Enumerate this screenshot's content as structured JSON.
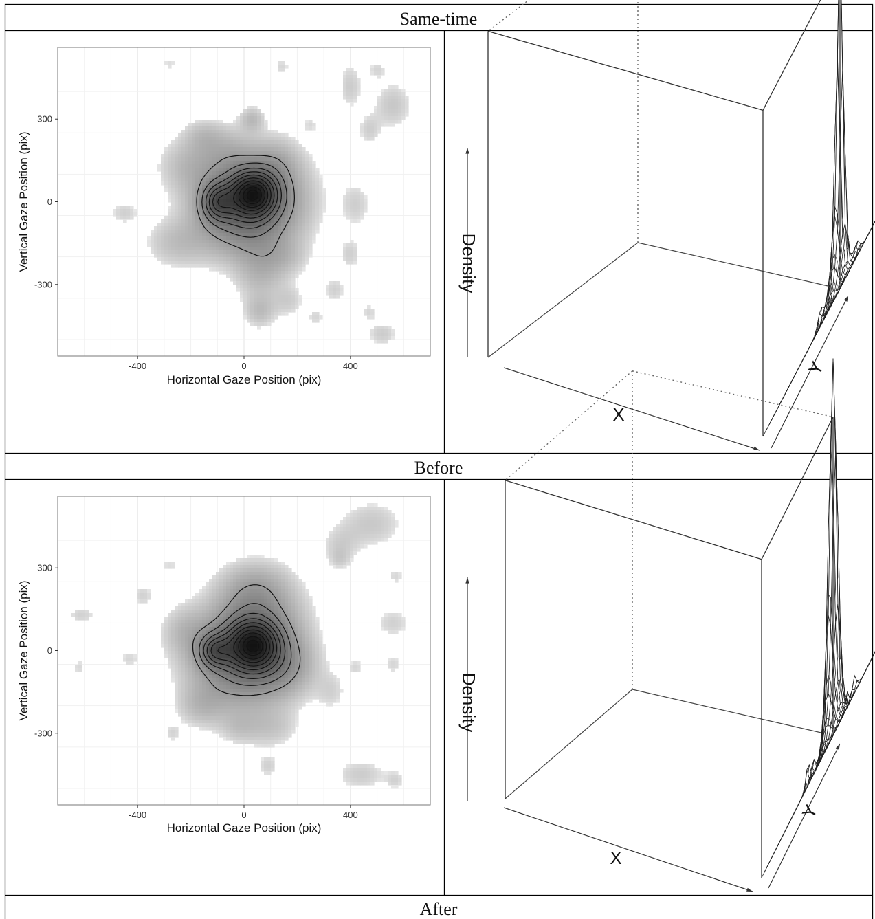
{
  "captions": [
    "Same-time",
    "Before",
    "After"
  ],
  "chart_data": [
    {
      "type": "heatmap",
      "subtype": "2d-density-contour",
      "panel": "Same-time",
      "xlabel": "Horizontal Gaze Position (pix)",
      "ylabel": "Vertical Gaze Position (pix)",
      "x_ticks": [
        -400,
        0,
        400
      ],
      "y_ticks": [
        300,
        0,
        -300
      ],
      "x_tick_labels": [
        "-400",
        "0",
        "400"
      ],
      "y_tick_labels": [
        "300",
        "0",
        "-300"
      ],
      "xlim": [
        -700,
        700
      ],
      "ylim": [
        -560,
        560
      ],
      "grid": true,
      "colors": {
        "fill_low": "#e8e8e8",
        "fill_high": "#111111",
        "contour": "#111111",
        "grid": "#e6e6e6"
      },
      "peaks": [
        {
          "x": 35,
          "y": 30,
          "weight": 1.0,
          "sx": 60,
          "sy": 55
        },
        {
          "x": -100,
          "y": 0,
          "weight": 0.55,
          "sx": 40,
          "sy": 45
        },
        {
          "x": -20,
          "y": -40,
          "weight": 0.4,
          "sx": 110,
          "sy": 100
        },
        {
          "x": 60,
          "y": 10,
          "weight": 0.35,
          "sx": 120,
          "sy": 110
        },
        {
          "x": -200,
          "y": 130,
          "weight": 0.14,
          "sx": 80,
          "sy": 70
        },
        {
          "x": 120,
          "y": 140,
          "weight": 0.12,
          "sx": 60,
          "sy": 60
        },
        {
          "x": -250,
          "y": -150,
          "weight": 0.12,
          "sx": 80,
          "sy": 60
        },
        {
          "x": -60,
          "y": 180,
          "weight": 0.12,
          "sx": 70,
          "sy": 60
        },
        {
          "x": 60,
          "y": -250,
          "weight": 0.14,
          "sx": 60,
          "sy": 80
        },
        {
          "x": 60,
          "y": -400,
          "weight": 0.12,
          "sx": 40,
          "sy": 40
        },
        {
          "x": 30,
          "y": 300,
          "weight": 0.14,
          "sx": 30,
          "sy": 30
        },
        {
          "x": 150,
          "y": -200,
          "weight": 0.1,
          "sx": 60,
          "sy": 50
        },
        {
          "x": -150,
          "y": 240,
          "weight": 0.1,
          "sx": 50,
          "sy": 40
        },
        {
          "x": -450,
          "y": -40,
          "weight": 0.08,
          "sx": 40,
          "sy": 30
        },
        {
          "x": 400,
          "y": 420,
          "weight": 0.09,
          "sx": 30,
          "sy": 60
        },
        {
          "x": 560,
          "y": 350,
          "weight": 0.1,
          "sx": 50,
          "sy": 60
        },
        {
          "x": 470,
          "y": 260,
          "weight": 0.08,
          "sx": 30,
          "sy": 40
        },
        {
          "x": 420,
          "y": -10,
          "weight": 0.08,
          "sx": 40,
          "sy": 60
        },
        {
          "x": 400,
          "y": -190,
          "weight": 0.08,
          "sx": 30,
          "sy": 40
        },
        {
          "x": 340,
          "y": -320,
          "weight": 0.08,
          "sx": 30,
          "sy": 35
        },
        {
          "x": 270,
          "y": -420,
          "weight": 0.07,
          "sx": 25,
          "sy": 25
        },
        {
          "x": 470,
          "y": -400,
          "weight": 0.07,
          "sx": 25,
          "sy": 25
        },
        {
          "x": 520,
          "y": -480,
          "weight": 0.09,
          "sx": 40,
          "sy": 30
        },
        {
          "x": 250,
          "y": 280,
          "weight": 0.06,
          "sx": 25,
          "sy": 25
        },
        {
          "x": 140,
          "y": 490,
          "weight": 0.07,
          "sx": 25,
          "sy": 25
        },
        {
          "x": -280,
          "y": 500,
          "weight": 0.06,
          "sx": 30,
          "sy": 20
        },
        {
          "x": 500,
          "y": 480,
          "weight": 0.07,
          "sx": 25,
          "sy": 25
        },
        {
          "x": 170,
          "y": -360,
          "weight": 0.08,
          "sx": 40,
          "sy": 40
        }
      ]
    },
    {
      "type": "surface",
      "subtype": "3d-perspective-wireframe",
      "panel": "Same-time",
      "axis_labels": {
        "x": "X",
        "y": "Y",
        "z": "Density"
      },
      "grid_size": 30,
      "peaks": [
        {
          "u": 0.5,
          "v": 0.5,
          "height": 1.0,
          "s": 0.03
        },
        {
          "u": 0.46,
          "v": 0.52,
          "height": 0.25,
          "s": 0.06
        },
        {
          "u": 0.52,
          "v": 0.45,
          "height": 0.15,
          "s": 0.05
        },
        {
          "u": 0.4,
          "v": 0.35,
          "height": 0.06,
          "s": 0.025
        },
        {
          "u": 0.6,
          "v": 0.62,
          "height": 0.05,
          "s": 0.025
        }
      ]
    },
    {
      "type": "heatmap",
      "subtype": "2d-density-contour",
      "panel": "Before",
      "xlabel": "Horizontal Gaze Position (pix)",
      "ylabel": "Vertical Gaze Position (pix)",
      "x_ticks": [
        -400,
        0,
        400
      ],
      "y_ticks": [
        300,
        0,
        -300
      ],
      "x_tick_labels": [
        "-400",
        "0",
        "400"
      ],
      "y_tick_labels": [
        "300",
        "0",
        "-300"
      ],
      "xlim": [
        -700,
        700
      ],
      "ylim": [
        -560,
        560
      ],
      "grid": true,
      "colors": {
        "fill_low": "#e8e8e8",
        "fill_high": "#111111",
        "contour": "#111111",
        "grid": "#e6e6e6"
      },
      "peaks": [
        {
          "x": 35,
          "y": 20,
          "weight": 1.0,
          "sx": 65,
          "sy": 60
        },
        {
          "x": -110,
          "y": 0,
          "weight": 0.55,
          "sx": 40,
          "sy": 40
        },
        {
          "x": -20,
          "y": -40,
          "weight": 0.45,
          "sx": 120,
          "sy": 110
        },
        {
          "x": 50,
          "y": 80,
          "weight": 0.35,
          "sx": 110,
          "sy": 120
        },
        {
          "x": 150,
          "y": -60,
          "weight": 0.2,
          "sx": 80,
          "sy": 70
        },
        {
          "x": 40,
          "y": 220,
          "weight": 0.15,
          "sx": 80,
          "sy": 60
        },
        {
          "x": -160,
          "y": -200,
          "weight": 0.12,
          "sx": 60,
          "sy": 50
        },
        {
          "x": -220,
          "y": 70,
          "weight": 0.12,
          "sx": 60,
          "sy": 60
        },
        {
          "x": 100,
          "y": -280,
          "weight": 0.1,
          "sx": 70,
          "sy": 50
        },
        {
          "x": -20,
          "y": -280,
          "weight": 0.08,
          "sx": 50,
          "sy": 40
        },
        {
          "x": -380,
          "y": 200,
          "weight": 0.08,
          "sx": 30,
          "sy": 30
        },
        {
          "x": -430,
          "y": -30,
          "weight": 0.07,
          "sx": 30,
          "sy": 25
        },
        {
          "x": -610,
          "y": 130,
          "weight": 0.08,
          "sx": 40,
          "sy": 25
        },
        {
          "x": -620,
          "y": -60,
          "weight": 0.07,
          "sx": 20,
          "sy": 25
        },
        {
          "x": -270,
          "y": -300,
          "weight": 0.07,
          "sx": 25,
          "sy": 25
        },
        {
          "x": 480,
          "y": 460,
          "weight": 0.1,
          "sx": 80,
          "sy": 60
        },
        {
          "x": 360,
          "y": 380,
          "weight": 0.08,
          "sx": 50,
          "sy": 50
        },
        {
          "x": 360,
          "y": 330,
          "weight": 0.06,
          "sx": 25,
          "sy": 25
        },
        {
          "x": 570,
          "y": 270,
          "weight": 0.07,
          "sx": 25,
          "sy": 25
        },
        {
          "x": 560,
          "y": 100,
          "weight": 0.08,
          "sx": 50,
          "sy": 40
        },
        {
          "x": 560,
          "y": -50,
          "weight": 0.07,
          "sx": 30,
          "sy": 30
        },
        {
          "x": 420,
          "y": -60,
          "weight": 0.07,
          "sx": 25,
          "sy": 25
        },
        {
          "x": 90,
          "y": -420,
          "weight": 0.08,
          "sx": 30,
          "sy": 30
        },
        {
          "x": 440,
          "y": -450,
          "weight": 0.09,
          "sx": 70,
          "sy": 40
        },
        {
          "x": 570,
          "y": -470,
          "weight": 0.07,
          "sx": 25,
          "sy": 25
        },
        {
          "x": -280,
          "y": 310,
          "weight": 0.06,
          "sx": 40,
          "sy": 30
        },
        {
          "x": 330,
          "y": -150,
          "weight": 0.07,
          "sx": 40,
          "sy": 50
        }
      ]
    },
    {
      "type": "surface",
      "subtype": "3d-perspective-wireframe",
      "panel": "Before",
      "axis_labels": {
        "x": "X",
        "y": "Y",
        "z": "Density"
      },
      "grid_size": 30,
      "peaks": [
        {
          "u": 0.5,
          "v": 0.5,
          "height": 1.0,
          "s": 0.04
        },
        {
          "u": 0.46,
          "v": 0.54,
          "height": 0.35,
          "s": 0.06
        },
        {
          "u": 0.54,
          "v": 0.45,
          "height": 0.2,
          "s": 0.06
        },
        {
          "u": 0.3,
          "v": 0.35,
          "height": 0.09,
          "s": 0.02
        },
        {
          "u": 0.42,
          "v": 0.3,
          "height": 0.06,
          "s": 0.02
        },
        {
          "u": 0.6,
          "v": 0.7,
          "height": 0.06,
          "s": 0.025
        },
        {
          "u": 0.7,
          "v": 0.5,
          "height": 0.05,
          "s": 0.02
        }
      ]
    }
  ]
}
